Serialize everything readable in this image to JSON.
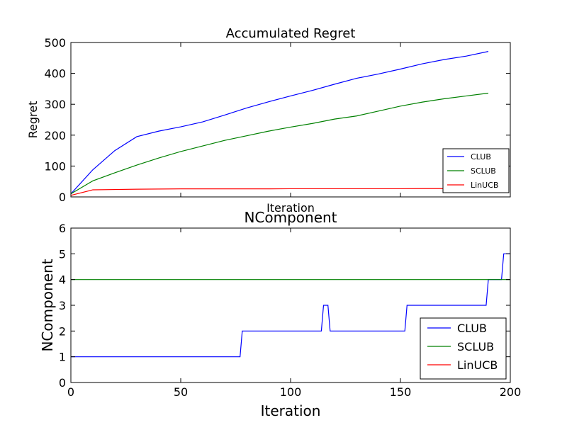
{
  "chart_data": [
    {
      "type": "line",
      "title": "Accumulated Regret",
      "xlabel": "Iteration",
      "ylabel": "Regret",
      "xlim": [
        0,
        200
      ],
      "ylim": [
        0,
        500
      ],
      "yticks": [
        "0",
        "100",
        "200",
        "300",
        "400",
        "500"
      ],
      "xticks_visible": false,
      "legend": "lower-right",
      "series": [
        {
          "name": "CLUB",
          "color": "#0000ff",
          "x": [
            0,
            10,
            20,
            30,
            40,
            50,
            60,
            70,
            80,
            90,
            100,
            110,
            120,
            130,
            140,
            150,
            160,
            170,
            180,
            190
          ],
          "y": [
            10,
            88,
            150,
            195,
            213,
            227,
            243,
            265,
            288,
            308,
            327,
            345,
            365,
            384,
            398,
            414,
            431,
            445,
            456,
            471
          ]
        },
        {
          "name": "SCLUB",
          "color": "#008000",
          "x": [
            0,
            10,
            20,
            30,
            40,
            50,
            60,
            70,
            80,
            90,
            100,
            110,
            120,
            130,
            140,
            150,
            160,
            170,
            180,
            190
          ],
          "y": [
            10,
            52,
            78,
            103,
            126,
            147,
            165,
            183,
            198,
            213,
            226,
            238,
            252,
            262,
            278,
            294,
            307,
            318,
            327,
            336
          ]
        },
        {
          "name": "LinUCB",
          "color": "#ff0000",
          "x": [
            0,
            10,
            20,
            30,
            40,
            50,
            60,
            70,
            80,
            90,
            100,
            110,
            120,
            130,
            140,
            150,
            160,
            170,
            180,
            190
          ],
          "y": [
            5,
            23,
            24,
            25,
            25.5,
            26,
            26,
            26,
            26,
            26,
            26.5,
            26.5,
            26.5,
            26.5,
            26.5,
            26.5,
            27,
            27,
            27,
            27
          ]
        }
      ]
    },
    {
      "type": "line",
      "title": "NComponent",
      "xlabel": "Iteration",
      "ylabel": "NComponent",
      "xlim": [
        0,
        200
      ],
      "ylim": [
        0,
        6
      ],
      "xticks": [
        "0",
        "50",
        "100",
        "150",
        "200"
      ],
      "yticks": [
        "0",
        "1",
        "2",
        "3",
        "4",
        "5",
        "6"
      ],
      "legend": "lower-right",
      "series": [
        {
          "name": "CLUB",
          "color": "#0000ff",
          "x": [
            0,
            77,
            78,
            114,
            115,
            117,
            118,
            152,
            153,
            189,
            190,
            196,
            197,
            199,
            200
          ],
          "y": [
            1,
            1,
            2,
            2,
            3,
            3,
            2,
            2,
            3,
            3,
            4,
            4,
            5,
            5,
            5
          ]
        },
        {
          "name": "SCLUB",
          "color": "#008000",
          "x": [
            0,
            200
          ],
          "y": [
            4,
            4
          ]
        },
        {
          "name": "LinUCB",
          "color": "#ff0000",
          "x": [],
          "y": []
        }
      ]
    }
  ]
}
